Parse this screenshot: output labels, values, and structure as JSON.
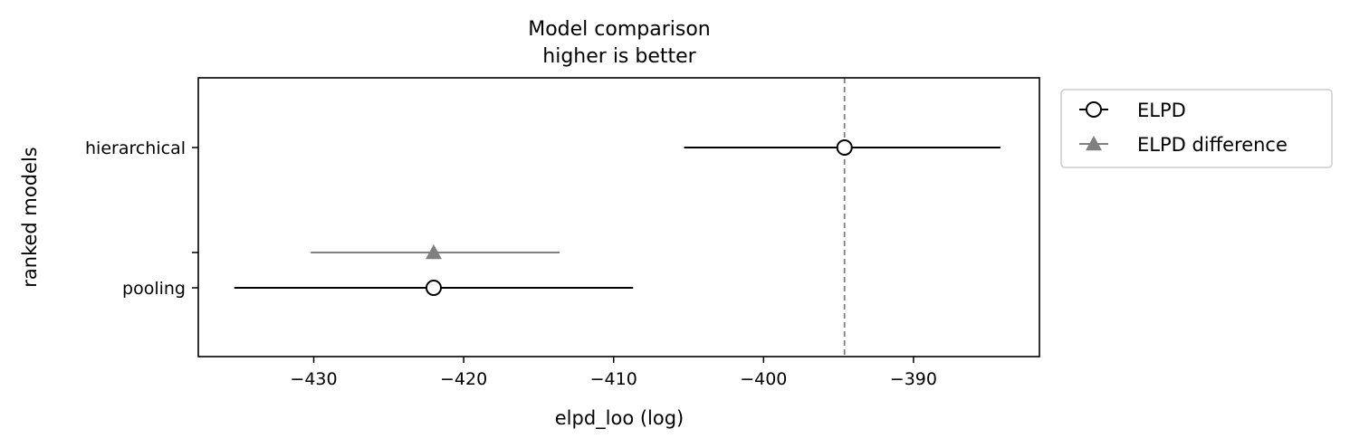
{
  "chart_data": {
    "type": "scatter",
    "title": [
      "Model comparison",
      "higher is better"
    ],
    "xlabel": "elpd_loo (log)",
    "ylabel": "ranked models",
    "xlim": [
      -437.7,
      -381.6
    ],
    "xticks": [
      -430,
      -420,
      -410,
      -400,
      -390
    ],
    "xtick_labels": [
      "−430",
      "−420",
      "−410",
      "−400",
      "−390"
    ],
    "grid": false,
    "legend_position": "outside-right-top",
    "models": [
      "hierarchical",
      "pooling"
    ],
    "series": [
      {
        "name": "ELPD",
        "marker": "open-circle",
        "color": "#000000",
        "points": [
          {
            "model": "hierarchical",
            "value": -394.6,
            "low": -405.3,
            "high": -384.2
          },
          {
            "model": "pooling",
            "value": -422.0,
            "low": -435.3,
            "high": -408.7
          }
        ]
      },
      {
        "name": "ELPD difference",
        "marker": "triangle",
        "color": "#808080",
        "points": [
          {
            "model": "pooling",
            "value": -422.0,
            "low": -430.2,
            "high": -413.6
          }
        ]
      }
    ],
    "reference_line": {
      "value": -394.6,
      "style": "dashed",
      "color": "#808080"
    }
  }
}
